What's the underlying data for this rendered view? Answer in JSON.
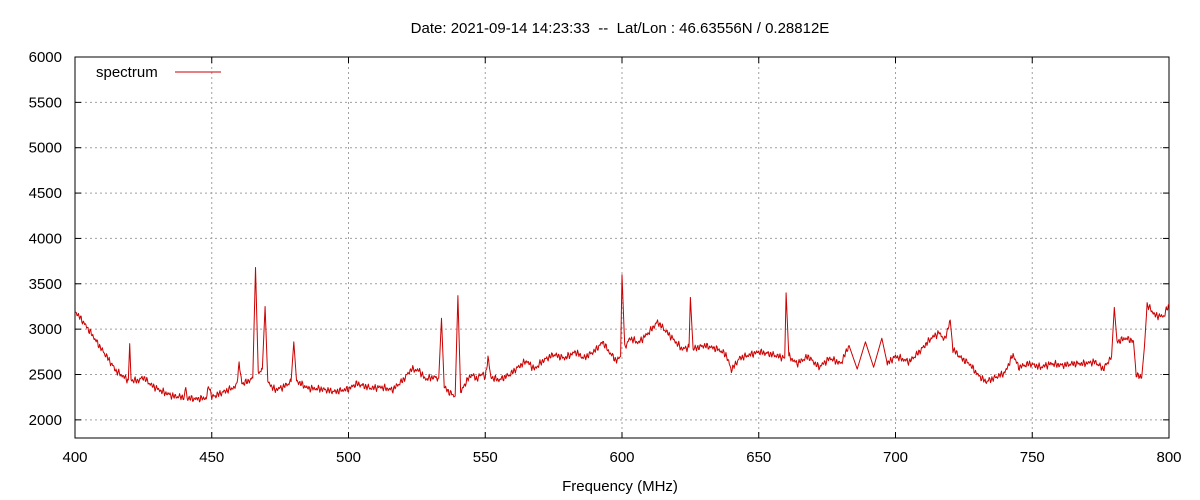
{
  "chart_data": {
    "type": "line",
    "title": "Date: 2021-09-14 14:23:33  --  Lat/Lon : 46.63556N / 0.28812E",
    "xlabel": "Frequency (MHz)",
    "ylabel": "",
    "xlim": [
      400,
      800
    ],
    "ylim": [
      1800,
      6000
    ],
    "x_ticks": [
      400,
      450,
      500,
      550,
      600,
      650,
      700,
      750,
      800
    ],
    "y_ticks": [
      2000,
      2500,
      3000,
      3500,
      4000,
      4500,
      5000,
      5500,
      6000
    ],
    "grid": true,
    "legend_position": "top-left",
    "series": [
      {
        "name": "spectrum",
        "color": "#cc0000",
        "points": [
          [
            400,
            3200
          ],
          [
            403,
            3080
          ],
          [
            406,
            2950
          ],
          [
            409,
            2810
          ],
          [
            412,
            2680
          ],
          [
            415,
            2540
          ],
          [
            418,
            2470
          ],
          [
            419.5,
            2440
          ],
          [
            420,
            2840
          ],
          [
            420.5,
            2440
          ],
          [
            423,
            2430
          ],
          [
            425,
            2470
          ],
          [
            428,
            2380
          ],
          [
            432,
            2310
          ],
          [
            436,
            2260
          ],
          [
            440,
            2250
          ],
          [
            440.5,
            2360
          ],
          [
            441,
            2240
          ],
          [
            444,
            2230
          ],
          [
            448,
            2240
          ],
          [
            449,
            2380
          ],
          [
            450,
            2250
          ],
          [
            453,
            2290
          ],
          [
            456,
            2330
          ],
          [
            459,
            2370
          ],
          [
            460,
            2620
          ],
          [
            461,
            2400
          ],
          [
            463,
            2420
          ],
          [
            465,
            2460
          ],
          [
            466,
            3680
          ],
          [
            467,
            2520
          ],
          [
            468.5,
            2560
          ],
          [
            469.5,
            3250
          ],
          [
            470.5,
            2420
          ],
          [
            473,
            2330
          ],
          [
            476,
            2360
          ],
          [
            479,
            2420
          ],
          [
            480,
            2860
          ],
          [
            481,
            2430
          ],
          [
            485,
            2350
          ],
          [
            490,
            2340
          ],
          [
            495,
            2310
          ],
          [
            500,
            2340
          ],
          [
            503,
            2400
          ],
          [
            505,
            2380
          ],
          [
            508,
            2350
          ],
          [
            512,
            2360
          ],
          [
            516,
            2330
          ],
          [
            520,
            2440
          ],
          [
            523,
            2560
          ],
          [
            526,
            2540
          ],
          [
            528,
            2450
          ],
          [
            531,
            2470
          ],
          [
            533,
            2460
          ],
          [
            534,
            3120
          ],
          [
            535,
            2360
          ],
          [
            537,
            2300
          ],
          [
            539,
            2260
          ],
          [
            540,
            3370
          ],
          [
            541,
            2300
          ],
          [
            543,
            2420
          ],
          [
            545,
            2500
          ],
          [
            547,
            2450
          ],
          [
            549,
            2520
          ],
          [
            550,
            2450
          ],
          [
            551,
            2700
          ],
          [
            552,
            2470
          ],
          [
            555,
            2440
          ],
          [
            559,
            2500
          ],
          [
            562,
            2580
          ],
          [
            565,
            2650
          ],
          [
            568,
            2560
          ],
          [
            571,
            2650
          ],
          [
            575,
            2720
          ],
          [
            579,
            2680
          ],
          [
            583,
            2750
          ],
          [
            586,
            2680
          ],
          [
            590,
            2760
          ],
          [
            593,
            2860
          ],
          [
            595,
            2760
          ],
          [
            598,
            2650
          ],
          [
            599.5,
            2700
          ],
          [
            600,
            3600
          ],
          [
            601,
            2800
          ],
          [
            603,
            2900
          ],
          [
            606,
            2850
          ],
          [
            610,
            2970
          ],
          [
            613,
            3080
          ],
          [
            616,
            2980
          ],
          [
            619,
            2880
          ],
          [
            622,
            2780
          ],
          [
            624.5,
            2800
          ],
          [
            625,
            3350
          ],
          [
            626,
            2780
          ],
          [
            630,
            2820
          ],
          [
            635,
            2780
          ],
          [
            638,
            2720
          ],
          [
            640,
            2550
          ],
          [
            643,
            2680
          ],
          [
            647,
            2720
          ],
          [
            650,
            2750
          ],
          [
            655,
            2720
          ],
          [
            659.5,
            2680
          ],
          [
            660,
            3400
          ],
          [
            661,
            2700
          ],
          [
            664,
            2620
          ],
          [
            668,
            2700
          ],
          [
            672,
            2580
          ],
          [
            676,
            2680
          ],
          [
            680,
            2620
          ],
          [
            683,
            2820
          ],
          [
            686,
            2560
          ],
          [
            689,
            2860
          ],
          [
            692,
            2580
          ],
          [
            695,
            2900
          ],
          [
            697,
            2620
          ],
          [
            700,
            2700
          ],
          [
            705,
            2640
          ],
          [
            709,
            2760
          ],
          [
            713,
            2900
          ],
          [
            716,
            2960
          ],
          [
            718,
            2880
          ],
          [
            720,
            3100
          ],
          [
            721,
            2780
          ],
          [
            724,
            2680
          ],
          [
            727,
            2620
          ],
          [
            730,
            2500
          ],
          [
            733,
            2420
          ],
          [
            736,
            2460
          ],
          [
            740,
            2520
          ],
          [
            743,
            2720
          ],
          [
            745,
            2580
          ],
          [
            749,
            2620
          ],
          [
            753,
            2580
          ],
          [
            757,
            2620
          ],
          [
            761,
            2600
          ],
          [
            765,
            2620
          ],
          [
            769,
            2620
          ],
          [
            773,
            2640
          ],
          [
            776,
            2560
          ],
          [
            779,
            2700
          ],
          [
            780,
            3240
          ],
          [
            781,
            2860
          ],
          [
            784,
            2900
          ],
          [
            787,
            2870
          ],
          [
            788,
            2500
          ],
          [
            790,
            2460
          ],
          [
            791,
            2800
          ],
          [
            792,
            3270
          ],
          [
            795,
            3150
          ],
          [
            798,
            3140
          ],
          [
            800,
            3270
          ]
        ]
      }
    ]
  }
}
